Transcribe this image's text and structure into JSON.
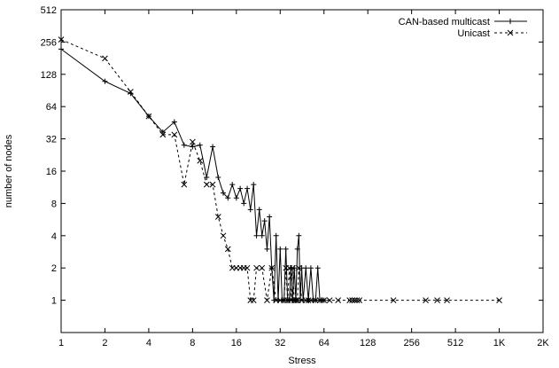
{
  "chart_data": {
    "type": "line",
    "xlabel": "Stress",
    "ylabel": "number of nodes",
    "x_scale": "log2",
    "y_scale": "log2",
    "xlim": [
      1,
      2048
    ],
    "ylim": [
      0.5,
      512
    ],
    "x_ticks": [
      {
        "value": 1,
        "label": "1"
      },
      {
        "value": 2,
        "label": "2"
      },
      {
        "value": 4,
        "label": "4"
      },
      {
        "value": 8,
        "label": "8"
      },
      {
        "value": 16,
        "label": "16"
      },
      {
        "value": 32,
        "label": "32"
      },
      {
        "value": 64,
        "label": "64"
      },
      {
        "value": 128,
        "label": "128"
      },
      {
        "value": 256,
        "label": "256"
      },
      {
        "value": 512,
        "label": "512"
      },
      {
        "value": 1024,
        "label": "1K"
      },
      {
        "value": 2048,
        "label": "2K"
      }
    ],
    "y_ticks": [
      {
        "value": 1,
        "label": "1"
      },
      {
        "value": 2,
        "label": "2"
      },
      {
        "value": 4,
        "label": "4"
      },
      {
        "value": 8,
        "label": "8"
      },
      {
        "value": 16,
        "label": "16"
      },
      {
        "value": 32,
        "label": "32"
      },
      {
        "value": 64,
        "label": "64"
      },
      {
        "value": 128,
        "label": "128"
      },
      {
        "value": 256,
        "label": "256"
      },
      {
        "value": 512,
        "label": "512"
      }
    ],
    "grid": false,
    "legend_position": "top-right",
    "series": [
      {
        "name": "CAN-based multicast",
        "marker": "plus",
        "line_style": "solid",
        "color": "#000000",
        "points": [
          [
            1,
            220
          ],
          [
            2,
            110
          ],
          [
            3,
            85
          ],
          [
            4,
            52
          ],
          [
            5,
            37
          ],
          [
            6,
            46
          ],
          [
            7,
            28
          ],
          [
            8,
            27
          ],
          [
            9,
            28
          ],
          [
            10,
            14
          ],
          [
            11,
            27
          ],
          [
            12,
            14
          ],
          [
            13,
            10
          ],
          [
            14,
            9
          ],
          [
            15,
            12
          ],
          [
            16,
            9
          ],
          [
            17,
            11
          ],
          [
            18,
            8
          ],
          [
            19,
            11
          ],
          [
            20,
            7
          ],
          [
            21,
            12
          ],
          [
            22,
            4
          ],
          [
            23,
            7
          ],
          [
            24,
            4
          ],
          [
            25,
            5.5
          ],
          [
            26,
            3
          ],
          [
            27,
            6
          ],
          [
            28,
            2
          ],
          [
            29,
            1
          ],
          [
            30,
            4
          ],
          [
            31,
            1
          ],
          [
            32,
            3
          ],
          [
            33,
            1
          ],
          [
            34,
            1
          ],
          [
            35,
            3
          ],
          [
            36,
            1
          ],
          [
            37,
            1
          ],
          [
            38,
            2
          ],
          [
            39,
            1
          ],
          [
            40,
            2
          ],
          [
            41,
            1
          ],
          [
            42,
            3
          ],
          [
            43,
            4
          ],
          [
            44,
            1
          ],
          [
            45,
            2
          ],
          [
            46,
            1
          ],
          [
            48,
            2
          ],
          [
            50,
            1
          ],
          [
            52,
            2
          ],
          [
            54,
            1
          ],
          [
            56,
            1
          ],
          [
            58,
            2
          ],
          [
            60,
            1
          ],
          [
            62,
            1
          ],
          [
            64,
            1
          ]
        ]
      },
      {
        "name": "Unicast",
        "marker": "x",
        "line_style": "dashed",
        "color": "#000000",
        "points": [
          [
            1,
            270
          ],
          [
            2,
            180
          ],
          [
            3,
            88
          ],
          [
            4,
            52
          ],
          [
            5,
            35
          ],
          [
            6,
            35
          ],
          [
            7,
            12
          ],
          [
            8,
            30
          ],
          [
            9,
            20
          ],
          [
            10,
            12
          ],
          [
            11,
            12
          ],
          [
            12,
            6
          ],
          [
            13,
            4
          ],
          [
            14,
            3
          ],
          [
            15,
            2
          ],
          [
            16,
            2
          ],
          [
            17,
            2
          ],
          [
            18,
            2
          ],
          [
            19,
            2
          ],
          [
            20,
            1
          ],
          [
            21,
            1
          ],
          [
            22,
            2
          ],
          [
            24,
            2
          ],
          [
            26,
            1
          ],
          [
            28,
            2
          ],
          [
            30,
            1
          ],
          [
            32,
            1
          ],
          [
            34,
            1
          ],
          [
            35,
            2
          ],
          [
            36,
            1
          ],
          [
            37,
            2
          ],
          [
            38,
            1
          ],
          [
            39,
            2
          ],
          [
            40,
            1
          ],
          [
            41,
            1
          ],
          [
            42,
            1
          ],
          [
            43,
            2
          ],
          [
            45,
            1
          ],
          [
            48,
            1
          ],
          [
            50,
            1
          ],
          [
            52,
            1
          ],
          [
            56,
            1
          ],
          [
            60,
            1
          ],
          [
            64,
            1
          ],
          [
            70,
            1
          ],
          [
            80,
            1
          ],
          [
            96,
            1
          ],
          [
            100,
            1
          ],
          [
            104,
            1
          ],
          [
            108,
            1
          ],
          [
            112,
            1
          ],
          [
            192,
            1
          ],
          [
            320,
            1
          ],
          [
            384,
            1
          ],
          [
            448,
            1
          ],
          [
            1024,
            1
          ]
        ]
      }
    ]
  }
}
